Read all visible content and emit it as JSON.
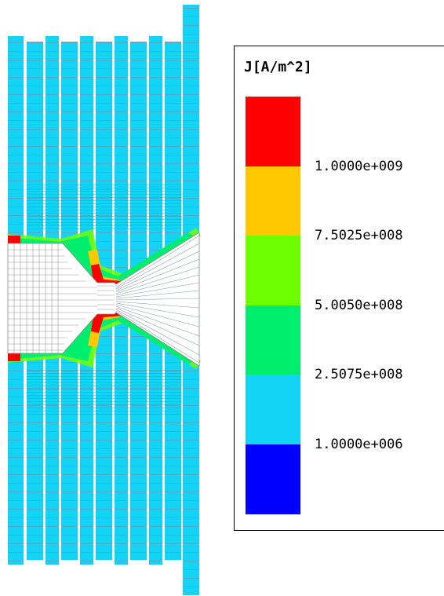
{
  "legend": {
    "title": "J[A/m^2]",
    "levels": [
      {
        "color": "#ff0000"
      },
      {
        "color": "#ffc800"
      },
      {
        "color": "#6eff00"
      },
      {
        "color": "#00ee6e"
      },
      {
        "color": "#14d4f5"
      },
      {
        "color": "#0000ff"
      }
    ],
    "tick_labels": [
      "1.0000e+009",
      "7.5025e+008",
      "5.0050e+008",
      "2.5075e+008",
      "1.0000e+006"
    ]
  },
  "colors": {
    "background_field": "#14d4f5",
    "mesh_line": "#8a8a8a",
    "hotspot": "#ff0000",
    "warm": "#ffc800",
    "mid": "#6eff00",
    "cool": "#00ee6e",
    "device_fill": "#ffffff"
  }
}
